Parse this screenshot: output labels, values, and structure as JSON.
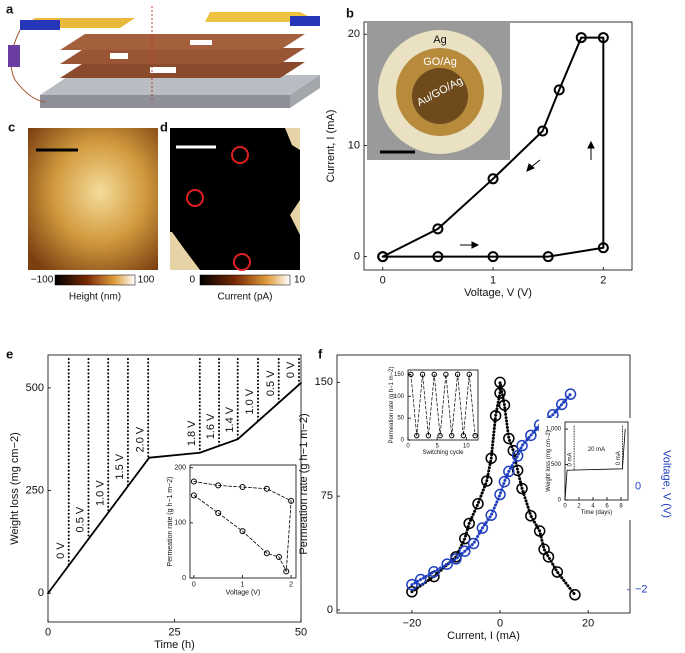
{
  "panel_labels": [
    "a",
    "b",
    "c",
    "d",
    "e",
    "f"
  ],
  "images": {
    "c": {
      "colorbar_ticks": [
        {
          "value": -100,
          "label": "−100"
        },
        100
      ],
      "colorbar_label": "Height (nm)"
    },
    "d": {
      "colorbar_ticks": [
        0,
        10
      ],
      "colorbar_label": "Current (pA)"
    }
  },
  "chart_data": [
    {
      "type": "line",
      "xlabel": "Voltage, V (V)",
      "ylabel": "Current, I (mA)",
      "xlim": [
        -0.17,
        2.26
      ],
      "ylim": [
        -1.2,
        21.1
      ],
      "xticks": [
        0,
        1,
        2
      ],
      "yticks": [
        0,
        10,
        20
      ],
      "marker": "circle",
      "line_style": "solid",
      "series": [
        {
          "color": "#000000",
          "x": [
            0,
            0.5,
            1,
            1.5,
            2,
            2,
            1.8,
            1.6,
            1.45,
            1,
            0.5,
            0
          ],
          "values": [
            0,
            0,
            0,
            0,
            0.8,
            19.7,
            19.7,
            15,
            11.3,
            7,
            2.5,
            0
          ]
        }
      ],
      "photo_labels": [
        "Ag",
        "GO/Ag",
        "Au/GO/Ag"
      ]
    },
    {
      "type": "line",
      "xlabel": "Time (h)",
      "ylabel": "Weight loss (mg cm−2)",
      "xlim": [
        0,
        50
      ],
      "ylim": [
        -70,
        580
      ],
      "xticks": [
        0,
        25,
        50
      ],
      "yticks": [
        0,
        250,
        500
      ],
      "line_style": "solid",
      "series": [
        {
          "color": "#000000",
          "x": [
            0,
            20,
            30,
            37.5,
            50
          ],
          "values": [
            0,
            330,
            342,
            375,
            512
          ]
        }
      ],
      "annotations": [
        {
          "x": 4.1,
          "label": "0 V"
        },
        {
          "x": 8,
          "label": "0.5 V"
        },
        {
          "x": 11.9,
          "label": "1.0 V"
        },
        {
          "x": 15.8,
          "label": "1.5 V"
        },
        {
          "x": 19.8,
          "label": "2.0 V"
        },
        {
          "x": 30,
          "label": "1.8 V"
        },
        {
          "x": 33.8,
          "label": "1.6 V"
        },
        {
          "x": 37.5,
          "label": "1.4 V"
        },
        {
          "x": 41.5,
          "label": "1.0 V"
        },
        {
          "x": 45.6,
          "label": "0.5 V"
        },
        {
          "x": 49.6,
          "label": "0 V"
        }
      ]
    },
    {
      "type": "line",
      "xlabel": "Voltage (V)",
      "ylabel": "Permeation rate (g h−1 m−2)",
      "xlim": [
        -0.08,
        2.1
      ],
      "ylim": [
        0,
        205
      ],
      "xticks": [
        0,
        1,
        2
      ],
      "yticks": [
        0,
        100,
        200
      ],
      "marker": "circle",
      "line_style": "dashed",
      "series": [
        {
          "color": "#000000",
          "x": [
            0,
            0.5,
            1,
            1.5,
            2,
            1.9,
            1.75,
            1.5,
            1,
            0.5,
            0
          ],
          "values": [
            175,
            168,
            165,
            162,
            140,
            12,
            38,
            45,
            85,
            118,
            150
          ]
        }
      ]
    },
    {
      "type": "line",
      "xlabel": "Current, I (mA)",
      "ylabel": "Permeation rate (g h−1 m−2)",
      "y2label": "Voltage, V (V)",
      "xlim": [
        -37,
        29.5
      ],
      "ylim": [
        -2,
        168
      ],
      "y2lim": [
        -2.45,
        2.56
      ],
      "xticks": [
        {
          "value": -20,
          "label": "−20"
        },
        0,
        20
      ],
      "yticks": [
        0,
        75,
        150
      ],
      "y2ticks": [
        {
          "value": -2,
          "label": "−2"
        },
        0
      ],
      "marker": "circle",
      "line_style": "dotted",
      "series": [
        {
          "color": "#000000",
          "x": [
            -20,
            -15,
            -10,
            -8,
            -7,
            -5,
            -3,
            -2,
            -1,
            0,
            0,
            1,
            2,
            3,
            4,
            5,
            7,
            9,
            10,
            11,
            13,
            17
          ],
          "values": [
            12,
            22,
            35,
            47,
            57,
            70,
            85,
            100,
            128,
            143,
            150,
            135,
            113,
            105,
            92,
            80,
            62,
            52,
            40,
            35,
            25,
            10
          ]
        },
        {
          "color": "#1f3fbf",
          "axis": "y2",
          "x": [
            -20,
            -18,
            -15,
            -12,
            -10,
            -8,
            -6,
            -4,
            -2,
            0,
            1,
            2,
            4,
            5,
            7,
            9,
            12,
            14,
            16
          ],
          "values": [
            -1.9,
            -1.8,
            -1.65,
            -1.5,
            -1.4,
            -1.25,
            -1.1,
            -0.8,
            -0.55,
            -0.15,
            0.1,
            0.3,
            0.6,
            0.8,
            1.0,
            1.2,
            1.4,
            1.6,
            1.8
          ]
        }
      ]
    },
    {
      "type": "line",
      "xlabel": "Switching cycle",
      "ylabel": "Permeation rate (g h−1 m−2)",
      "xlim": [
        0,
        12
      ],
      "ylim": [
        0,
        160
      ],
      "xticks": [
        0,
        5,
        10
      ],
      "yticks": [
        0,
        50,
        100,
        150
      ],
      "marker": "circle",
      "line_style": "dashed",
      "series": [
        {
          "color": "#000000",
          "x": [
            0.5,
            1.5,
            2.5,
            3.5,
            4.5,
            5.5,
            6.5,
            7.5,
            8.5,
            9.5,
            10.5,
            11.5
          ],
          "values": [
            150,
            10,
            150,
            10,
            150,
            10,
            150,
            10,
            150,
            10,
            150,
            10
          ]
        }
      ]
    },
    {
      "type": "line",
      "xlabel": "Time (days)",
      "ylabel": "Weight loss (mg cm−2)",
      "xlim": [
        0,
        9
      ],
      "ylim": [
        0,
        1100
      ],
      "xticks": [
        0,
        2,
        4,
        6,
        8
      ],
      "yticks": [
        0,
        500,
        {
          "value": 1000,
          "label": "1,000"
        }
      ],
      "line_style": "solid",
      "series": [
        {
          "color": "#000000",
          "x": [
            0,
            0.3,
            8.2,
            8.6
          ],
          "values": [
            0,
            420,
            440,
            1000
          ]
        }
      ],
      "annotations": [
        {
          "x": 1.3,
          "label": "0 mA"
        },
        {
          "x": 8.2,
          "label": "0 mA"
        }
      ],
      "notes": [
        "20 mA"
      ]
    }
  ]
}
